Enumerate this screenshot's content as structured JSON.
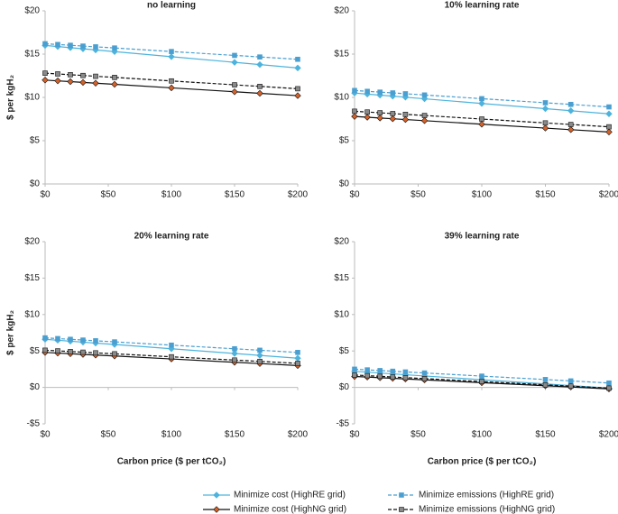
{
  "chart_data": [
    {
      "type": "line",
      "title": "no learning",
      "y_label": "$ per kgH₂",
      "x": [
        0,
        10,
        20,
        30,
        40,
        55,
        100,
        150,
        170,
        200
      ],
      "xlim": [
        0,
        200
      ],
      "xticks": [
        {
          "value": 0,
          "label": "$0"
        },
        {
          "value": 50,
          "label": "$50"
        },
        {
          "value": 100,
          "label": "$100"
        },
        {
          "value": 150,
          "label": "$150"
        },
        {
          "value": 200,
          "label": "$200"
        }
      ],
      "ylim": [
        0,
        20
      ],
      "yticks": [
        {
          "value": 0,
          "label": "$0"
        },
        {
          "value": 5,
          "label": "$5"
        },
        {
          "value": 10,
          "label": "$10"
        },
        {
          "value": 15,
          "label": "$15"
        },
        {
          "value": 20,
          "label": "$20"
        }
      ],
      "legend": "bottom",
      "series": [
        {
          "name": "Minimize cost (HighRE grid)",
          "color": "#4db3dc",
          "marker_color": "#4db3dc",
          "marker": "diamond",
          "dashed": false,
          "values": [
            16.0,
            15.87,
            15.74,
            15.61,
            15.48,
            15.29,
            14.7,
            14.05,
            13.79,
            13.4
          ]
        },
        {
          "name": "Minimize emissions (HighRE grid)",
          "color": "#4a9fd0",
          "marker_color": "#4a9fd0",
          "marker": "square",
          "dashed": true,
          "values": [
            16.2,
            16.11,
            16.02,
            15.93,
            15.84,
            15.71,
            15.3,
            14.85,
            14.67,
            14.4
          ]
        },
        {
          "name": "Minimize cost (HighNG grid)",
          "color": "#111111",
          "marker_color": "#d4622a",
          "marker": "diamond",
          "dashed": false,
          "values": [
            12.0,
            11.91,
            11.82,
            11.73,
            11.64,
            11.51,
            11.1,
            10.65,
            10.47,
            10.2
          ]
        },
        {
          "name": "Minimize emissions (HighNG grid)",
          "color": "#111111",
          "marker_color": "#8a8a8a",
          "marker": "square",
          "dashed": true,
          "values": [
            12.8,
            12.71,
            12.62,
            12.53,
            12.44,
            12.31,
            11.9,
            11.45,
            11.27,
            11.0
          ]
        }
      ]
    },
    {
      "type": "line",
      "title": "10% learning rate",
      "x": [
        0,
        10,
        20,
        30,
        40,
        55,
        100,
        150,
        170,
        200
      ],
      "xlim": [
        0,
        200
      ],
      "xticks": [
        {
          "value": 0,
          "label": "$0"
        },
        {
          "value": 50,
          "label": "$50"
        },
        {
          "value": 100,
          "label": "$100"
        },
        {
          "value": 150,
          "label": "$150"
        },
        {
          "value": 200,
          "label": "$200"
        }
      ],
      "ylim": [
        0,
        20
      ],
      "yticks": [
        {
          "value": 0,
          "label": "$0"
        },
        {
          "value": 5,
          "label": "$5"
        },
        {
          "value": 10,
          "label": "$10"
        },
        {
          "value": 15,
          "label": "$15"
        },
        {
          "value": 20,
          "label": "$20"
        }
      ],
      "series": [
        {
          "name": "Minimize cost (HighRE grid)",
          "color": "#4db3dc",
          "marker_color": "#4db3dc",
          "marker": "diamond",
          "dashed": false,
          "values": [
            10.5,
            10.38,
            10.26,
            10.14,
            10.02,
            9.84,
            9.3,
            8.7,
            8.46,
            8.1
          ]
        },
        {
          "name": "Minimize emissions (HighRE grid)",
          "color": "#4a9fd0",
          "marker_color": "#4a9fd0",
          "marker": "square",
          "dashed": true,
          "values": [
            10.8,
            10.7,
            10.61,
            10.52,
            10.42,
            10.28,
            9.85,
            9.38,
            9.19,
            8.9
          ]
        },
        {
          "name": "Minimize cost (HighNG grid)",
          "color": "#111111",
          "marker_color": "#d4622a",
          "marker": "diamond",
          "dashed": false,
          "values": [
            7.8,
            7.71,
            7.62,
            7.53,
            7.44,
            7.31,
            6.9,
            6.45,
            6.27,
            6.0
          ]
        },
        {
          "name": "Minimize emissions (HighNG grid)",
          "color": "#111111",
          "marker_color": "#8a8a8a",
          "marker": "square",
          "dashed": true,
          "values": [
            8.4,
            8.31,
            8.22,
            8.13,
            8.04,
            7.91,
            7.5,
            7.05,
            6.87,
            6.6
          ]
        }
      ]
    },
    {
      "type": "line",
      "title": "20% learning rate",
      "y_label": "$ per kgH₂",
      "x_label": "Carbon price ($ per tCO₂)",
      "x": [
        0,
        10,
        20,
        30,
        40,
        55,
        100,
        150,
        170,
        200
      ],
      "xlim": [
        0,
        200
      ],
      "xticks": [
        {
          "value": 0,
          "label": "$0"
        },
        {
          "value": 50,
          "label": "$50"
        },
        {
          "value": 100,
          "label": "$100"
        },
        {
          "value": 150,
          "label": "$150"
        },
        {
          "value": 200,
          "label": "$200"
        }
      ],
      "ylim": [
        -5,
        20
      ],
      "yticks": [
        {
          "value": -5,
          "label": "-$5"
        },
        {
          "value": 0,
          "label": "$0"
        },
        {
          "value": 5,
          "label": "$5"
        },
        {
          "value": 10,
          "label": "$10"
        },
        {
          "value": 15,
          "label": "$15"
        },
        {
          "value": 20,
          "label": "$20"
        }
      ],
      "series": [
        {
          "name": "Minimize cost (HighRE grid)",
          "color": "#4db3dc",
          "marker_color": "#4db3dc",
          "marker": "diamond",
          "dashed": false,
          "values": [
            6.6,
            6.47,
            6.34,
            6.21,
            6.08,
            5.89,
            5.3,
            4.65,
            4.39,
            4.0
          ]
        },
        {
          "name": "Minimize emissions (HighRE grid)",
          "color": "#4a9fd0",
          "marker_color": "#4a9fd0",
          "marker": "square",
          "dashed": true,
          "values": [
            6.8,
            6.7,
            6.6,
            6.5,
            6.4,
            6.25,
            5.8,
            5.3,
            5.1,
            4.8
          ]
        },
        {
          "name": "Minimize cost (HighNG grid)",
          "color": "#111111",
          "marker_color": "#d4622a",
          "marker": "diamond",
          "dashed": false,
          "values": [
            4.8,
            4.71,
            4.62,
            4.53,
            4.44,
            4.31,
            3.9,
            3.45,
            3.27,
            3.0
          ]
        },
        {
          "name": "Minimize emissions (HighNG grid)",
          "color": "#111111",
          "marker_color": "#8a8a8a",
          "marker": "square",
          "dashed": true,
          "values": [
            5.1,
            5.01,
            4.92,
            4.83,
            4.74,
            4.61,
            4.2,
            3.75,
            3.57,
            3.3
          ]
        }
      ]
    },
    {
      "type": "line",
      "title": "39% learning rate",
      "x_label": "Carbon price ($ per tCO₂)",
      "x": [
        0,
        10,
        20,
        30,
        40,
        55,
        100,
        150,
        170,
        200
      ],
      "xlim": [
        0,
        200
      ],
      "xticks": [
        {
          "value": 0,
          "label": "$0"
        },
        {
          "value": 50,
          "label": "$50"
        },
        {
          "value": 100,
          "label": "$100"
        },
        {
          "value": 150,
          "label": "$150"
        },
        {
          "value": 200,
          "label": "$200"
        }
      ],
      "ylim": [
        -5,
        20
      ],
      "yticks": [
        {
          "value": -5,
          "label": "-$5"
        },
        {
          "value": 0,
          "label": "$0"
        },
        {
          "value": 5,
          "label": "$5"
        },
        {
          "value": 10,
          "label": "$10"
        },
        {
          "value": 15,
          "label": "$15"
        },
        {
          "value": 20,
          "label": "$20"
        }
      ],
      "series": [
        {
          "name": "Minimize cost (HighRE grid)",
          "color": "#4db3dc",
          "marker_color": "#4db3dc",
          "marker": "diamond",
          "dashed": false,
          "values": [
            2.2,
            2.09,
            1.97,
            1.86,
            1.74,
            1.57,
            1.05,
            0.48,
            0.25,
            -0.1
          ]
        },
        {
          "name": "Minimize emissions (HighRE grid)",
          "color": "#4a9fd0",
          "marker_color": "#4a9fd0",
          "marker": "square",
          "dashed": true,
          "values": [
            2.5,
            2.41,
            2.31,
            2.22,
            2.12,
            1.98,
            1.55,
            1.08,
            0.89,
            0.6
          ]
        },
        {
          "name": "Minimize cost (HighNG grid)",
          "color": "#111111",
          "marker_color": "#d4622a",
          "marker": "diamond",
          "dashed": false,
          "values": [
            1.5,
            1.42,
            1.33,
            1.25,
            1.16,
            1.03,
            0.65,
            0.23,
            0.06,
            -0.2
          ]
        },
        {
          "name": "Minimize emissions (HighNG grid)",
          "color": "#111111",
          "marker_color": "#8a8a8a",
          "marker": "square",
          "dashed": true,
          "values": [
            1.7,
            1.61,
            1.52,
            1.43,
            1.34,
            1.21,
            0.8,
            0.35,
            0.17,
            -0.1
          ]
        }
      ]
    }
  ]
}
